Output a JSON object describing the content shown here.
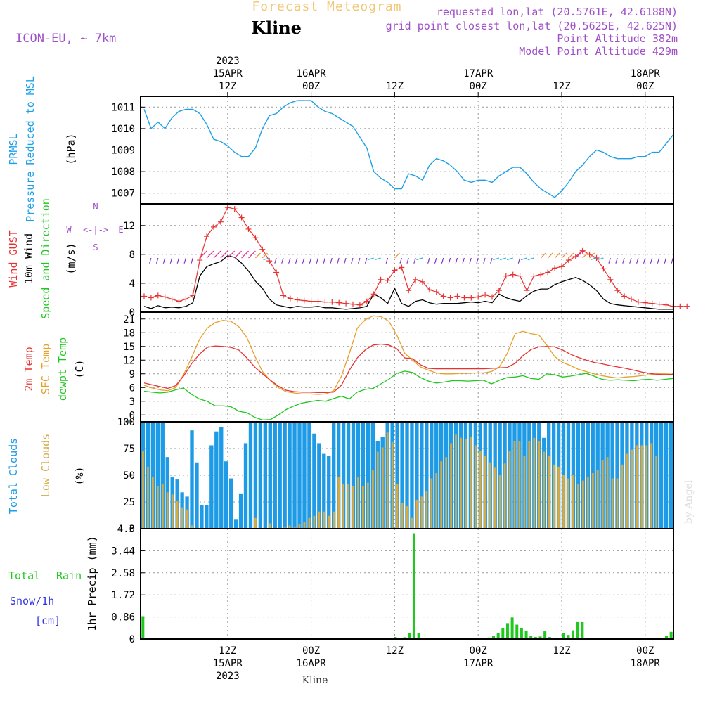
{
  "header": {
    "title": "Forecast Meteogram",
    "station": "Kline",
    "model": "ICON-EU, ~ 7km",
    "requested": "requested lon,lat (20.5761E, 42.6188N)",
    "grid_point": "grid point closest lon,lat (20.5625E, 42.625N)",
    "point_altitude": "Point Altitude 382m",
    "model_point_altitude": "Model Point Altitude 429m",
    "bottom_station": "Kline",
    "watermark": "by Angel"
  },
  "time_axis": {
    "top_labels": [
      {
        "t": 12,
        "lines": [
          "2023",
          "15APR",
          "12Z"
        ]
      },
      {
        "t": 24,
        "lines": [
          "16APR",
          "00Z"
        ]
      },
      {
        "t": 36,
        "lines": [
          "12Z"
        ]
      },
      {
        "t": 48,
        "lines": [
          "17APR",
          "00Z"
        ]
      },
      {
        "t": 60,
        "lines": [
          "12Z"
        ]
      },
      {
        "t": 72,
        "lines": [
          "18APR",
          "00Z"
        ]
      }
    ],
    "bottom_labels": [
      {
        "t": 12,
        "lines": [
          "12Z",
          "15APR",
          "2023"
        ]
      },
      {
        "t": 24,
        "lines": [
          "00Z",
          "16APR"
        ]
      },
      {
        "t": 36,
        "lines": [
          "12Z"
        ]
      },
      {
        "t": 48,
        "lines": [
          "00Z",
          "17APR"
        ]
      },
      {
        "t": 60,
        "lines": [
          "12Z"
        ]
      },
      {
        "t": 72,
        "lines": [
          "00Z",
          "18APR"
        ]
      }
    ]
  },
  "panel_labels": {
    "pressure": [
      "PRMSL",
      "Pressure Reduced to MSL",
      "(hPa)"
    ],
    "wind": [
      "Wind GUST",
      "10m Wind",
      "Speed and Direction",
      "(m/s)"
    ],
    "compass": {
      "n": "N",
      "s": "S",
      "w": "W",
      "e": "E",
      "arrow": "<-|->"
    },
    "temp": [
      "2m Temp",
      "SFC Temp",
      "dewpt Temp",
      "(C)"
    ],
    "clouds": [
      "Total Clouds",
      "Low Clouds",
      "(%)"
    ],
    "precip": [
      "1hr Precip (mm)",
      "Total",
      "Rain",
      "Snow/1h",
      "[cm]"
    ]
  },
  "colors": {
    "pressure": "#1ea0e6",
    "gust": "#e83232",
    "wind": "#000000",
    "temp2m": "#e83232",
    "sfc": "#e6a028",
    "dew": "#1ec81e",
    "total_cloud": "#1e9be6",
    "low_cloud": "#d2aa46",
    "precip": "#1ec81e",
    "title": "#f0c878",
    "meta": "#a050c8",
    "snow": "#3232e6"
  },
  "chart_data": [
    {
      "type": "line",
      "title": "PRMSL Pressure Reduced to MSL",
      "ylabel": "(hPa)",
      "ylim": [
        1006.5,
        1011.5
      ],
      "yticks": [
        "1007",
        "1008",
        "1009",
        "1010",
        "1011"
      ],
      "x_hours": [
        0,
        1,
        2,
        3,
        4,
        5,
        6,
        7,
        8,
        9,
        10,
        11,
        12,
        13,
        14,
        15,
        16,
        17,
        18,
        19,
        20,
        21,
        22,
        23,
        24,
        25,
        26,
        27,
        28,
        29,
        30,
        31,
        32,
        33,
        34,
        35,
        36,
        37,
        38,
        39,
        40,
        41,
        42,
        43,
        44,
        45,
        46,
        47,
        48,
        49,
        50,
        51,
        52,
        53,
        54,
        55,
        56,
        57,
        58,
        59,
        60,
        61,
        62,
        63,
        64,
        65,
        66,
        67,
        68,
        69,
        70,
        71,
        72,
        73,
        74,
        75,
        76
      ],
      "series": [
        {
          "name": "PRMSL",
          "values": [
            1010.9,
            1010.0,
            1010.3,
            1010.0,
            1010.5,
            1010.8,
            1010.9,
            1010.9,
            1010.7,
            1010.2,
            1009.5,
            1009.4,
            1009.2,
            1008.9,
            1008.7,
            1008.7,
            1009.1,
            1010.0,
            1010.6,
            1010.7,
            1011.0,
            1011.2,
            1011.3,
            1011.3,
            1011.3,
            1011.0,
            1010.8,
            1010.7,
            1010.5,
            1010.3,
            1010.1,
            1009.6,
            1009.1,
            1008.0,
            1007.7,
            1007.5,
            1007.2,
            1007.2,
            1007.9,
            1007.8,
            1007.6,
            1008.3,
            1008.6,
            1008.5,
            1008.3,
            1008.0,
            1007.6,
            1007.5,
            1007.6,
            1007.6,
            1007.5,
            1007.8,
            1008.0,
            1008.2,
            1008.2,
            1007.9,
            1007.5,
            1007.2,
            1007.0,
            1006.8,
            1007.1,
            1007.5,
            1008.0,
            1008.3,
            1008.7,
            1009.0,
            1008.9,
            1008.7,
            1008.6,
            1008.6,
            1008.6,
            1008.7,
            1008.7,
            1008.9,
            1008.9,
            1009.3,
            1009.7
          ]
        }
      ]
    },
    {
      "type": "line",
      "title": "Wind GUST / 10m Wind Speed and Direction",
      "ylabel": "(m/s)",
      "ylim": [
        0,
        15
      ],
      "yticks": [
        "0",
        "4",
        "8",
        "12"
      ],
      "series": [
        {
          "name": "Wind GUST",
          "values": [
            2.2,
            2.0,
            2.3,
            2.1,
            1.8,
            1.5,
            1.8,
            2.3,
            7.2,
            10.5,
            11.8,
            12.5,
            14.5,
            14.3,
            13.1,
            11.5,
            10.3,
            8.7,
            7.1,
            5.5,
            2.3,
            1.9,
            1.7,
            1.6,
            1.5,
            1.5,
            1.4,
            1.4,
            1.3,
            1.2,
            1.1,
            1.0,
            1.5,
            2.5,
            4.5,
            4.4,
            5.8,
            6.2,
            3.0,
            4.5,
            4.2,
            3.1,
            2.8,
            2.2,
            2.0,
            2.2,
            2.0,
            2.0,
            2.1,
            2.4,
            2.1,
            3.0,
            5.0,
            5.2,
            5.0,
            3.0,
            5.0,
            5.2,
            5.5,
            6.1,
            6.3,
            7.2,
            7.7,
            8.5,
            8.0,
            7.5,
            6.0,
            4.5,
            3.0,
            2.2,
            1.8,
            1.4,
            1.3,
            1.2,
            1.1,
            1.0,
            0.8,
            0.8,
            0.8
          ]
        },
        {
          "name": "10m Wind",
          "values": [
            0.8,
            0.5,
            0.9,
            0.6,
            0.7,
            0.6,
            0.8,
            1.3,
            5.0,
            6.3,
            6.7,
            7.0,
            7.8,
            7.6,
            6.8,
            5.7,
            4.3,
            3.3,
            1.8,
            1.0,
            0.8,
            0.6,
            0.8,
            0.7,
            0.7,
            0.8,
            0.6,
            0.6,
            0.5,
            0.4,
            0.5,
            0.6,
            0.8,
            2.5,
            2.0,
            1.2,
            3.3,
            1.2,
            0.8,
            1.5,
            1.7,
            1.3,
            1.1,
            1.2,
            1.2,
            1.2,
            1.3,
            1.4,
            1.3,
            1.5,
            1.3,
            2.5,
            2.0,
            1.7,
            1.5,
            2.3,
            2.9,
            3.2,
            3.2,
            3.8,
            4.2,
            4.5,
            4.8,
            4.4,
            3.8,
            3.0,
            1.8,
            1.2,
            1.0,
            0.9,
            0.8,
            0.7,
            0.6,
            0.5,
            0.4,
            0.4,
            0.4
          ]
        }
      ]
    },
    {
      "type": "line",
      "title": "2m Temp / SFC Temp / dewpt Temp",
      "ylabel": "(C)",
      "ylim": [
        -1.5,
        22.5
      ],
      "yticks": [
        "0",
        "3",
        "6",
        "9",
        "12",
        "15",
        "18",
        "21"
      ],
      "series": [
        {
          "name": "2m Temp",
          "values": [
            7.0,
            6.6,
            6.2,
            5.8,
            6.4,
            8.5,
            11.2,
            13.3,
            14.8,
            15.1,
            15.0,
            14.8,
            14.2,
            12.5,
            10.5,
            9.0,
            7.6,
            6.3,
            5.4,
            5.1,
            5.0,
            5.0,
            4.9,
            4.9,
            5.0,
            6.5,
            9.8,
            12.5,
            14.2,
            15.3,
            15.5,
            15.3,
            14.5,
            12.5,
            12.3,
            11.0,
            10.2,
            10.1,
            10.1,
            10.1,
            10.1,
            10.1,
            10.1,
            10.1,
            10.2,
            10.3,
            10.4,
            11.3,
            13.0,
            14.3,
            14.9,
            15.0,
            14.9,
            14.2,
            13.3,
            12.6,
            12.0,
            11.5,
            11.2,
            10.8,
            10.5,
            10.2,
            9.8,
            9.4,
            9.1,
            8.9,
            8.8,
            8.9
          ]
        },
        {
          "name": "SFC Temp",
          "values": [
            6.5,
            5.9,
            5.5,
            5.3,
            6.0,
            8.8,
            12.5,
            16.5,
            19.0,
            20.2,
            20.7,
            20.5,
            19.3,
            17.0,
            13.0,
            9.5,
            7.5,
            6.0,
            5.1,
            4.8,
            4.6,
            4.6,
            4.5,
            4.6,
            5.3,
            8.5,
            13.5,
            19.0,
            20.8,
            21.7,
            21.5,
            20.5,
            17.5,
            13.5,
            12.0,
            10.5,
            9.8,
            9.2,
            9.0,
            9.0,
            9.1,
            9.1,
            9.2,
            9.2,
            9.5,
            10.5,
            13.5,
            17.8,
            18.3,
            17.8,
            17.5,
            15.3,
            12.8,
            11.5,
            10.8,
            10.0,
            9.5,
            9.0,
            8.6,
            8.3,
            8.1,
            8.3,
            8.4,
            8.6,
            8.8,
            9.0,
            9.0,
            8.9
          ]
        },
        {
          "name": "dewpt Temp",
          "values": [
            5.2,
            5.0,
            4.8,
            5.0,
            5.5,
            5.9,
            4.5,
            3.5,
            3.0,
            2.0,
            2.0,
            1.8,
            0.8,
            0.5,
            -0.5,
            -1.1,
            -1.0,
            0.0,
            1.2,
            2.0,
            2.6,
            2.9,
            3.2,
            3.0,
            3.6,
            4.1,
            3.5,
            5.0,
            5.6,
            5.8,
            6.8,
            7.8,
            9.1,
            9.6,
            9.3,
            8.2,
            7.4,
            7.0,
            7.2,
            7.5,
            7.5,
            7.4,
            7.5,
            7.6,
            6.8,
            7.6,
            8.2,
            8.3,
            8.6,
            8.0,
            7.8,
            9.0,
            8.8,
            8.3,
            8.5,
            8.8,
            9.1,
            8.5,
            7.8,
            7.6,
            7.7,
            7.6,
            7.5,
            7.7,
            7.8,
            7.6,
            7.8,
            8.0
          ]
        }
      ]
    },
    {
      "type": "bar",
      "title": "Total Clouds / Low Clouds",
      "ylabel": "(%)",
      "ylim": [
        0,
        100
      ],
      "yticks": [
        "0",
        "25",
        "50",
        "75",
        "100"
      ],
      "series": [
        {
          "name": "Total Clouds",
          "values": [
            100,
            100,
            100,
            100,
            100,
            67,
            48,
            46,
            34,
            30,
            92,
            62,
            22,
            22,
            78,
            91,
            95,
            63,
            47,
            9,
            33,
            80,
            100,
            100,
            100,
            100,
            100,
            100,
            100,
            100,
            100,
            100,
            100,
            100,
            100,
            89,
            80,
            70,
            68,
            100,
            100,
            100,
            100,
            100,
            100,
            100,
            100,
            100,
            82,
            86,
            100,
            100,
            100,
            100,
            100,
            100,
            100,
            100,
            100,
            100,
            100,
            100,
            100,
            100,
            100,
            100,
            100,
            100,
            100,
            100,
            100,
            100,
            100,
            100,
            100,
            100,
            100,
            100,
            100,
            100,
            100,
            100,
            85,
            100,
            100,
            100,
            100,
            100,
            100,
            100,
            100,
            100,
            100,
            100,
            100,
            100,
            100,
            100,
            100,
            100,
            100,
            100,
            100,
            100,
            100,
            100,
            100,
            100,
            100
          ]
        },
        {
          "name": "Low Clouds",
          "values": [
            73,
            58,
            48,
            40,
            42,
            34,
            32,
            26,
            20,
            18,
            3,
            0,
            0,
            0,
            0,
            0,
            0,
            0,
            0,
            0,
            0,
            0,
            0,
            10,
            0,
            0,
            5,
            0,
            0,
            2,
            3,
            2,
            4,
            6,
            10,
            12,
            16,
            16,
            12,
            16,
            48,
            42,
            42,
            40,
            48,
            40,
            43,
            55,
            72,
            76,
            90,
            81,
            42,
            24,
            21,
            10,
            27,
            30,
            35,
            47,
            52,
            63,
            67,
            80,
            88,
            85,
            84,
            86,
            78,
            73,
            68,
            62,
            57,
            50,
            61,
            73,
            82,
            82,
            68,
            82,
            85,
            82,
            72,
            68,
            60,
            58,
            50,
            47,
            50,
            42,
            45,
            48,
            52,
            55,
            64,
            67,
            47,
            47,
            60,
            70,
            74,
            78,
            78,
            78,
            80,
            68,
            0,
            0,
            0
          ]
        }
      ]
    },
    {
      "type": "bar",
      "title": "1hr Precip (mm)",
      "ylabel": "1hr Precip (mm)",
      "ylim": [
        0,
        4.3
      ],
      "yticks": [
        "0",
        "0.86",
        "1.72",
        "2.58",
        "3.44",
        "4.3"
      ],
      "series": [
        {
          "name": "Total Rain",
          "values": [
            0.89,
            0,
            0,
            0,
            0,
            0,
            0,
            0,
            0,
            0,
            0,
            0,
            0,
            0,
            0,
            0,
            0,
            0,
            0,
            0,
            0,
            0,
            0,
            0,
            0,
            0,
            0,
            0,
            0,
            0,
            0,
            0,
            0,
            0,
            0,
            0,
            0,
            0,
            0,
            0,
            0,
            0,
            0,
            0,
            0,
            0,
            0,
            0,
            0,
            0,
            0,
            0,
            0,
            0,
            0.08,
            0.05,
            0.07,
            0.24,
            4.12,
            0.22,
            0,
            0,
            0,
            0,
            0,
            0,
            0,
            0,
            0,
            0,
            0,
            0,
            0,
            0,
            0.06,
            0.12,
            0.22,
            0.42,
            0.62,
            0.84,
            0.56,
            0.42,
            0.33,
            0.13,
            0.08,
            0.1,
            0.3,
            0.08,
            0.05,
            0,
            0.22,
            0.16,
            0.34,
            0.66,
            0.66,
            0,
            0,
            0,
            0,
            0,
            0,
            0,
            0,
            0,
            0,
            0,
            0,
            0,
            0,
            0,
            0,
            0.04,
            0.11,
            0.28
          ]
        }
      ]
    }
  ]
}
